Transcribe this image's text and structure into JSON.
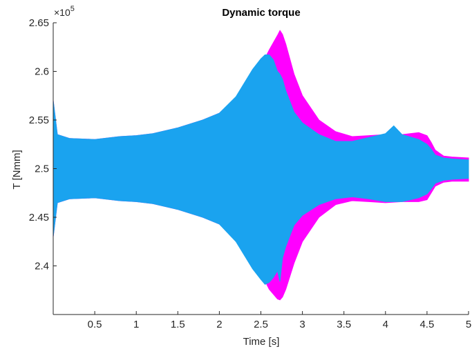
{
  "chart_data": {
    "type": "area",
    "title": "Dynamic torque",
    "xlabel": "Time [s]",
    "ylabel": "T [Nmm]",
    "y_multiplier": "×10",
    "y_multiplier_exp": "5",
    "xlim": [
      0,
      5
    ],
    "ylim": [
      2.35,
      2.65
    ],
    "x_ticks": [
      0.5,
      1,
      1.5,
      2,
      2.5,
      3,
      3.5,
      4,
      4.5,
      5
    ],
    "x_tick_labels": [
      "0.5",
      "1",
      "1.5",
      "2",
      "2.5",
      "3",
      "3.5",
      "4",
      "4.5",
      "5"
    ],
    "y_ticks": [
      2.4,
      2.45,
      2.5,
      2.55,
      2.6,
      2.65
    ],
    "y_tick_labels": [
      "2.4",
      "2.45",
      "2.5",
      "2.55",
      "2.6",
      "2.65"
    ],
    "grid": false,
    "legend": "none",
    "series": [
      {
        "color": "#ff00ff",
        "x": [
          0,
          0.05,
          0.2,
          0.5,
          0.8,
          1.0,
          1.2,
          1.5,
          1.8,
          2.0,
          2.2,
          2.4,
          2.5,
          2.6,
          2.7,
          2.73,
          2.76,
          2.8,
          2.9,
          3.0,
          3.2,
          3.4,
          3.6,
          3.8,
          4.0,
          4.2,
          4.4,
          4.5,
          4.55,
          4.6,
          4.7,
          4.8,
          5.0
        ],
        "upper": [
          2.57,
          2.535,
          2.531,
          2.53,
          2.533,
          2.534,
          2.536,
          2.542,
          2.55,
          2.557,
          2.573,
          2.591,
          2.605,
          2.622,
          2.637,
          2.642,
          2.638,
          2.628,
          2.597,
          2.575,
          2.55,
          2.538,
          2.533,
          2.534,
          2.535,
          2.535,
          2.537,
          2.534,
          2.527,
          2.519,
          2.513,
          2.512,
          2.511
        ],
        "lower": [
          2.43,
          2.465,
          2.469,
          2.47,
          2.467,
          2.466,
          2.464,
          2.458,
          2.45,
          2.443,
          2.428,
          2.408,
          2.393,
          2.376,
          2.366,
          2.365,
          2.368,
          2.376,
          2.403,
          2.425,
          2.45,
          2.463,
          2.467,
          2.466,
          2.465,
          2.466,
          2.466,
          2.468,
          2.475,
          2.482,
          2.486,
          2.487,
          2.487
        ]
      },
      {
        "color": "#1aa3ef",
        "x": [
          0,
          0.05,
          0.2,
          0.5,
          0.8,
          1.0,
          1.2,
          1.5,
          1.8,
          2.0,
          2.2,
          2.4,
          2.5,
          2.55,
          2.6,
          2.65,
          2.7,
          2.73,
          2.76,
          2.8,
          2.9,
          3.0,
          3.2,
          3.4,
          3.6,
          3.8,
          4.0,
          4.1,
          4.2,
          4.4,
          4.5,
          4.55,
          4.6,
          4.7,
          4.8,
          5.0
        ],
        "upper": [
          2.57,
          2.535,
          2.531,
          2.53,
          2.533,
          2.534,
          2.536,
          2.542,
          2.55,
          2.557,
          2.574,
          2.602,
          2.613,
          2.617,
          2.617,
          2.612,
          2.6,
          2.597,
          2.592,
          2.58,
          2.558,
          2.547,
          2.535,
          2.528,
          2.528,
          2.532,
          2.536,
          2.544,
          2.535,
          2.53,
          2.525,
          2.52,
          2.514,
          2.511,
          2.51,
          2.509
        ],
        "lower": [
          2.43,
          2.465,
          2.469,
          2.47,
          2.467,
          2.466,
          2.464,
          2.458,
          2.45,
          2.443,
          2.425,
          2.397,
          2.386,
          2.381,
          2.383,
          2.388,
          2.395,
          2.384,
          2.408,
          2.42,
          2.442,
          2.452,
          2.463,
          2.469,
          2.471,
          2.469,
          2.466,
          2.466,
          2.466,
          2.47,
          2.474,
          2.479,
          2.485,
          2.488,
          2.489,
          2.49
        ]
      }
    ]
  }
}
